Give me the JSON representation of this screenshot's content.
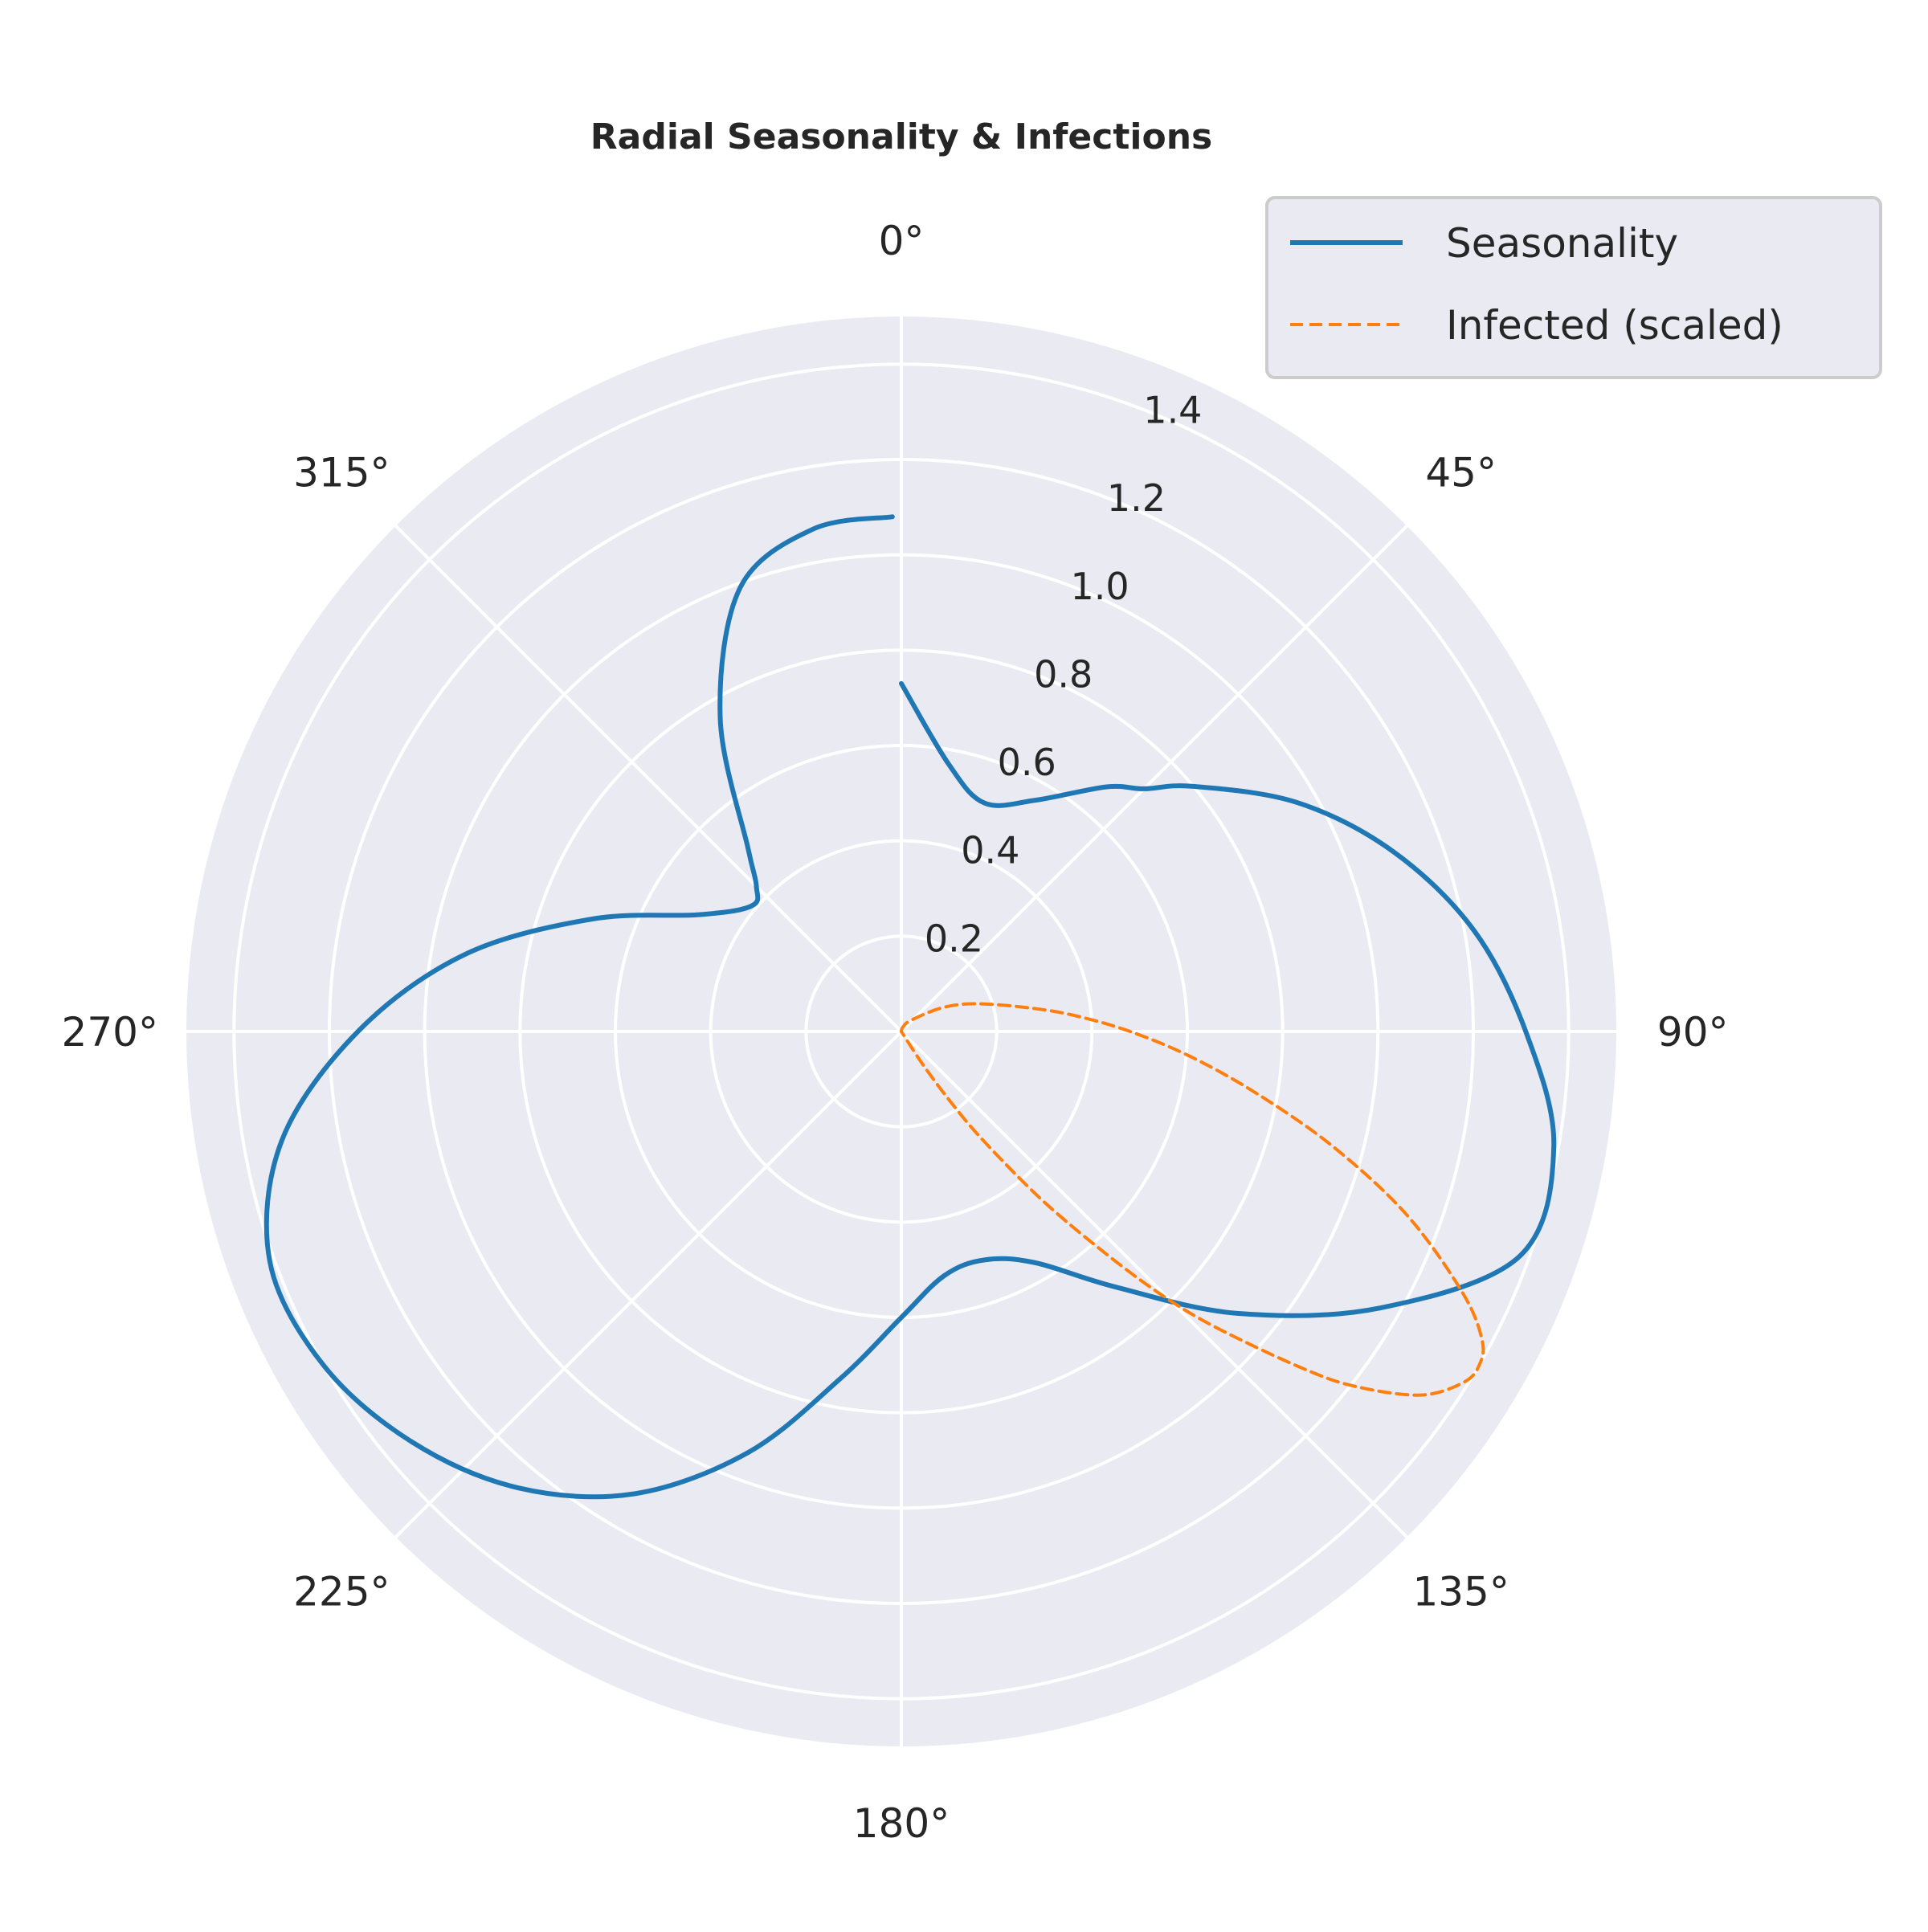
{
  "chart_data": {
    "type": "line",
    "projection": "polar",
    "title": "Radial Seasonality & Infections",
    "theta_direction": "clockwise",
    "theta_zero": "top",
    "theta_unit": "degrees",
    "theta_tick_labels": [
      "0°",
      "45°",
      "90°",
      "135°",
      "180°",
      "225°",
      "270°",
      "315°"
    ],
    "radial_tick_labels": [
      "0.2",
      "0.4",
      "0.6",
      "0.8",
      "1.0",
      "1.2",
      "1.4"
    ],
    "rlim": [
      0,
      1.5
    ],
    "grid": true,
    "legend_position": "top-right",
    "background": "#eaeaf2",
    "series": [
      {
        "name": "Seasonality",
        "color": "#1f77b4",
        "style": "solid",
        "theta": [
          0,
          10,
          20,
          30,
          40,
          45,
          50,
          60,
          70,
          80,
          90,
          100,
          110,
          120,
          130,
          140,
          150,
          160,
          170,
          180,
          190,
          200,
          210,
          220,
          230,
          240,
          250,
          260,
          270,
          280,
          290,
          300,
          310,
          315,
          320,
          330,
          340,
          350,
          359
        ],
        "r": [
          0.73,
          0.57,
          0.51,
          0.56,
          0.67,
          0.72,
          0.8,
          0.96,
          1.1,
          1.22,
          1.31,
          1.39,
          1.38,
          1.16,
          0.92,
          0.7,
          0.56,
          0.51,
          0.52,
          0.6,
          0.74,
          0.94,
          1.12,
          1.25,
          1.34,
          1.4,
          1.41,
          1.32,
          1.14,
          0.93,
          0.69,
          0.49,
          0.41,
          0.43,
          0.5,
          0.76,
          0.99,
          1.07,
          1.08
        ]
      },
      {
        "name": "Infected (scaled)",
        "color": "#ff7f0e",
        "style": "dashed",
        "theta": [
          0,
          10,
          20,
          40,
          60,
          70,
          80,
          85,
          90,
          95,
          100,
          105,
          110,
          115,
          118,
          120,
          122,
          125,
          128,
          130,
          133,
          135,
          137,
          140,
          143,
          145,
          147,
          149
        ],
        "r": [
          0.0,
          0.005,
          0.01,
          0.03,
          0.1,
          0.17,
          0.28,
          0.37,
          0.48,
          0.61,
          0.76,
          0.94,
          1.13,
          1.3,
          1.38,
          1.4,
          1.39,
          1.33,
          1.21,
          1.1,
          0.92,
          0.8,
          0.66,
          0.47,
          0.29,
          0.18,
          0.08,
          0.0
        ]
      }
    ]
  }
}
